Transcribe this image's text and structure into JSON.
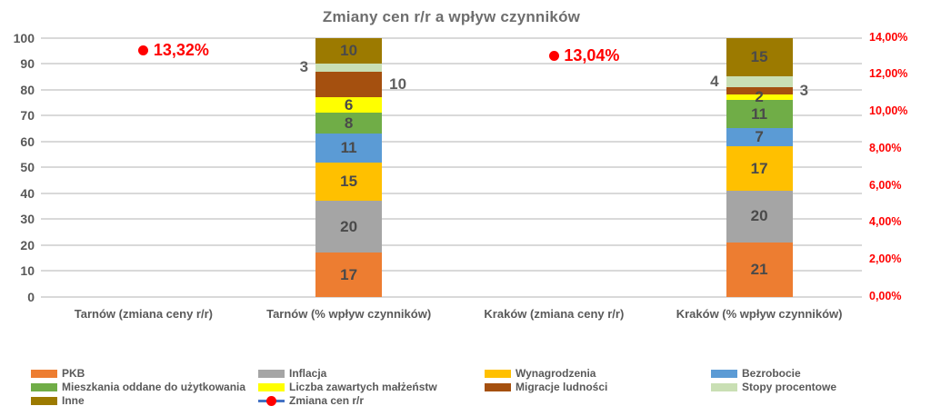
{
  "chart_data": {
    "type": "bar",
    "stacked": true,
    "title": "Zmiany cen r/r a wpływ czynników",
    "grid": true,
    "categories": [
      "Tarnów (zmiana ceny r/r)",
      "Tarnów (% wpływ czynników)",
      "Kraków (zmiana ceny r/r)",
      "Kraków (% wpływ czynników)"
    ],
    "bar_category_indices": [
      1,
      3
    ],
    "left_axis": {
      "min": 0,
      "max": 100,
      "step": 10,
      "ticks": [
        "0",
        "10",
        "20",
        "30",
        "40",
        "50",
        "60",
        "70",
        "80",
        "90",
        "100"
      ],
      "color": "#595959"
    },
    "right_axis": {
      "min": 0,
      "max": 14,
      "step": 2,
      "ticks": [
        "0,00%",
        "2,00%",
        "4,00%",
        "6,00%",
        "8,00%",
        "10,00%",
        "12,00%",
        "14,00%"
      ],
      "color": "#FF0000"
    },
    "series": [
      {
        "name": "PKB",
        "color": "#ED7D31",
        "label_placement": "inside",
        "values": [
          17,
          21
        ]
      },
      {
        "name": "Inflacja",
        "color": "#A5A5A5",
        "label_placement": "inside",
        "values": [
          20,
          20
        ]
      },
      {
        "name": "Wynagrodzenia",
        "color": "#FFC000",
        "label_placement": "inside",
        "values": [
          15,
          17
        ]
      },
      {
        "name": "Bezrobocie",
        "color": "#5B9BD5",
        "label_placement": "inside",
        "values": [
          11,
          7
        ]
      },
      {
        "name": "Mieszkania oddane do użytkowania",
        "color": "#70AD47",
        "label_placement": "inside",
        "values": [
          8,
          11
        ]
      },
      {
        "name": "Liczba zawartych małżeństw",
        "color": "#FFFF00",
        "label_placement": "inside",
        "values": [
          6,
          2
        ]
      },
      {
        "name": "Migracje ludności",
        "color": "#A5500F",
        "label_placement": "outside-right",
        "values": [
          10,
          3
        ]
      },
      {
        "name": "Stopy procentowe",
        "color": "#C9DFB4",
        "label_placement": "outside-left",
        "values": [
          3,
          4
        ]
      },
      {
        "name": "Inne",
        "color": "#9C7A00",
        "label_placement": "inside",
        "values": [
          10,
          15
        ]
      }
    ],
    "markers": {
      "name": "Zmiana cen r/r",
      "dot_color": "#FF0000",
      "points": [
        {
          "category_index": 0,
          "value": 13.32,
          "label": "13,32%"
        },
        {
          "category_index": 2,
          "value": 13.04,
          "label": "13,04%"
        }
      ]
    },
    "legend": {
      "items": [
        {
          "label": "PKB",
          "swatch": "#ED7D31",
          "col": 0,
          "row": 0
        },
        {
          "label": "Inflacja",
          "swatch": "#A5A5A5",
          "col": 1,
          "row": 0
        },
        {
          "label": "Wynagrodzenia",
          "swatch": "#FFC000",
          "col": 2,
          "row": 0
        },
        {
          "label": "Bezrobocie",
          "swatch": "#5B9BD5",
          "col": 3,
          "row": 0
        },
        {
          "label": "Mieszkania oddane do użytkowania",
          "swatch": "#70AD47",
          "col": 0,
          "row": 1
        },
        {
          "label": "Liczba zawartych małżeństw",
          "swatch": "#FFFF00",
          "col": 1,
          "row": 1
        },
        {
          "label": "Migracje ludności",
          "swatch": "#A5500F",
          "col": 2,
          "row": 1
        },
        {
          "label": "Stopy procentowe",
          "swatch": "#C9DFB4",
          "col": 3,
          "row": 1
        },
        {
          "label": "Inne",
          "swatch": "#9C7A00",
          "col": 0,
          "row": 2
        },
        {
          "label": "Zmiana cen r/r",
          "swatch": "line-marker",
          "col": 1,
          "row": 2,
          "line_color": "#4472C4",
          "marker_color": "#FF0000"
        }
      ]
    }
  }
}
